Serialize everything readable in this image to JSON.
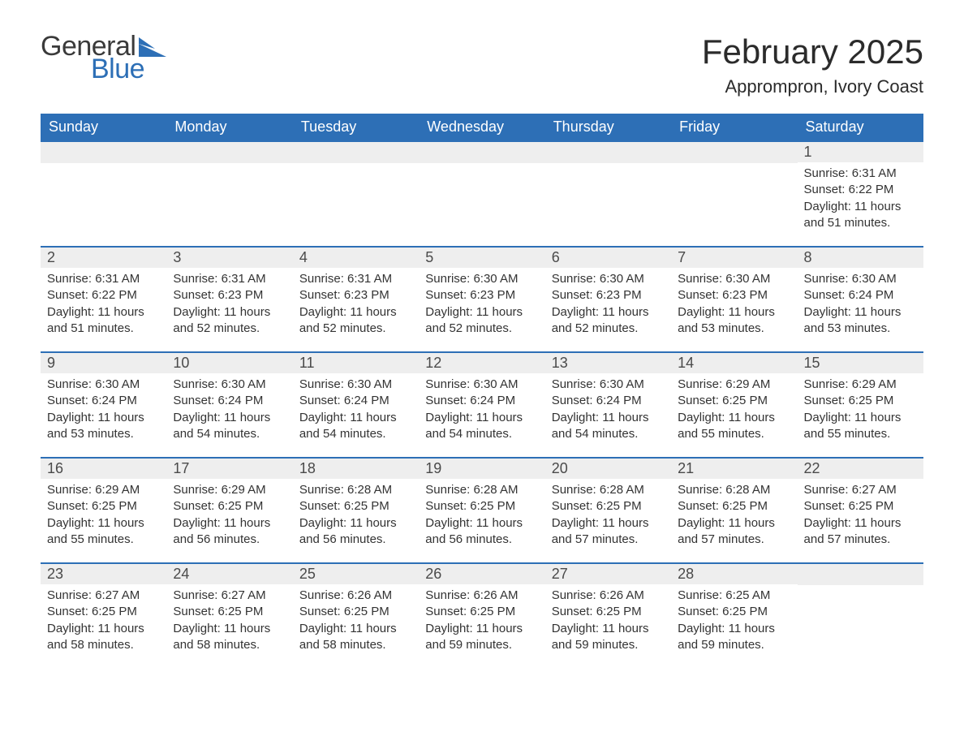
{
  "logo": {
    "word1": "General",
    "word2": "Blue"
  },
  "title": "February 2025",
  "location": "Apprompron, Ivory Coast",
  "colors": {
    "header_bg": "#2d6fb6",
    "header_text": "#ffffff",
    "daynum_bg": "#eeeeee",
    "body_text": "#333333",
    "rule": "#2d6fb6",
    "logo_blue": "#2d6fb6",
    "logo_dark": "#3a3a3a"
  },
  "day_headers": [
    "Sunday",
    "Monday",
    "Tuesday",
    "Wednesday",
    "Thursday",
    "Friday",
    "Saturday"
  ],
  "weeks": [
    [
      null,
      null,
      null,
      null,
      null,
      null,
      {
        "n": "1",
        "sunrise": "Sunrise: 6:31 AM",
        "sunset": "Sunset: 6:22 PM",
        "daylight": "Daylight: 11 hours and 51 minutes."
      }
    ],
    [
      {
        "n": "2",
        "sunrise": "Sunrise: 6:31 AM",
        "sunset": "Sunset: 6:22 PM",
        "daylight": "Daylight: 11 hours and 51 minutes."
      },
      {
        "n": "3",
        "sunrise": "Sunrise: 6:31 AM",
        "sunset": "Sunset: 6:23 PM",
        "daylight": "Daylight: 11 hours and 52 minutes."
      },
      {
        "n": "4",
        "sunrise": "Sunrise: 6:31 AM",
        "sunset": "Sunset: 6:23 PM",
        "daylight": "Daylight: 11 hours and 52 minutes."
      },
      {
        "n": "5",
        "sunrise": "Sunrise: 6:30 AM",
        "sunset": "Sunset: 6:23 PM",
        "daylight": "Daylight: 11 hours and 52 minutes."
      },
      {
        "n": "6",
        "sunrise": "Sunrise: 6:30 AM",
        "sunset": "Sunset: 6:23 PM",
        "daylight": "Daylight: 11 hours and 52 minutes."
      },
      {
        "n": "7",
        "sunrise": "Sunrise: 6:30 AM",
        "sunset": "Sunset: 6:23 PM",
        "daylight": "Daylight: 11 hours and 53 minutes."
      },
      {
        "n": "8",
        "sunrise": "Sunrise: 6:30 AM",
        "sunset": "Sunset: 6:24 PM",
        "daylight": "Daylight: 11 hours and 53 minutes."
      }
    ],
    [
      {
        "n": "9",
        "sunrise": "Sunrise: 6:30 AM",
        "sunset": "Sunset: 6:24 PM",
        "daylight": "Daylight: 11 hours and 53 minutes."
      },
      {
        "n": "10",
        "sunrise": "Sunrise: 6:30 AM",
        "sunset": "Sunset: 6:24 PM",
        "daylight": "Daylight: 11 hours and 54 minutes."
      },
      {
        "n": "11",
        "sunrise": "Sunrise: 6:30 AM",
        "sunset": "Sunset: 6:24 PM",
        "daylight": "Daylight: 11 hours and 54 minutes."
      },
      {
        "n": "12",
        "sunrise": "Sunrise: 6:30 AM",
        "sunset": "Sunset: 6:24 PM",
        "daylight": "Daylight: 11 hours and 54 minutes."
      },
      {
        "n": "13",
        "sunrise": "Sunrise: 6:30 AM",
        "sunset": "Sunset: 6:24 PM",
        "daylight": "Daylight: 11 hours and 54 minutes."
      },
      {
        "n": "14",
        "sunrise": "Sunrise: 6:29 AM",
        "sunset": "Sunset: 6:25 PM",
        "daylight": "Daylight: 11 hours and 55 minutes."
      },
      {
        "n": "15",
        "sunrise": "Sunrise: 6:29 AM",
        "sunset": "Sunset: 6:25 PM",
        "daylight": "Daylight: 11 hours and 55 minutes."
      }
    ],
    [
      {
        "n": "16",
        "sunrise": "Sunrise: 6:29 AM",
        "sunset": "Sunset: 6:25 PM",
        "daylight": "Daylight: 11 hours and 55 minutes."
      },
      {
        "n": "17",
        "sunrise": "Sunrise: 6:29 AM",
        "sunset": "Sunset: 6:25 PM",
        "daylight": "Daylight: 11 hours and 56 minutes."
      },
      {
        "n": "18",
        "sunrise": "Sunrise: 6:28 AM",
        "sunset": "Sunset: 6:25 PM",
        "daylight": "Daylight: 11 hours and 56 minutes."
      },
      {
        "n": "19",
        "sunrise": "Sunrise: 6:28 AM",
        "sunset": "Sunset: 6:25 PM",
        "daylight": "Daylight: 11 hours and 56 minutes."
      },
      {
        "n": "20",
        "sunrise": "Sunrise: 6:28 AM",
        "sunset": "Sunset: 6:25 PM",
        "daylight": "Daylight: 11 hours and 57 minutes."
      },
      {
        "n": "21",
        "sunrise": "Sunrise: 6:28 AM",
        "sunset": "Sunset: 6:25 PM",
        "daylight": "Daylight: 11 hours and 57 minutes."
      },
      {
        "n": "22",
        "sunrise": "Sunrise: 6:27 AM",
        "sunset": "Sunset: 6:25 PM",
        "daylight": "Daylight: 11 hours and 57 minutes."
      }
    ],
    [
      {
        "n": "23",
        "sunrise": "Sunrise: 6:27 AM",
        "sunset": "Sunset: 6:25 PM",
        "daylight": "Daylight: 11 hours and 58 minutes."
      },
      {
        "n": "24",
        "sunrise": "Sunrise: 6:27 AM",
        "sunset": "Sunset: 6:25 PM",
        "daylight": "Daylight: 11 hours and 58 minutes."
      },
      {
        "n": "25",
        "sunrise": "Sunrise: 6:26 AM",
        "sunset": "Sunset: 6:25 PM",
        "daylight": "Daylight: 11 hours and 58 minutes."
      },
      {
        "n": "26",
        "sunrise": "Sunrise: 6:26 AM",
        "sunset": "Sunset: 6:25 PM",
        "daylight": "Daylight: 11 hours and 59 minutes."
      },
      {
        "n": "27",
        "sunrise": "Sunrise: 6:26 AM",
        "sunset": "Sunset: 6:25 PM",
        "daylight": "Daylight: 11 hours and 59 minutes."
      },
      {
        "n": "28",
        "sunrise": "Sunrise: 6:25 AM",
        "sunset": "Sunset: 6:25 PM",
        "daylight": "Daylight: 11 hours and 59 minutes."
      },
      null
    ]
  ]
}
